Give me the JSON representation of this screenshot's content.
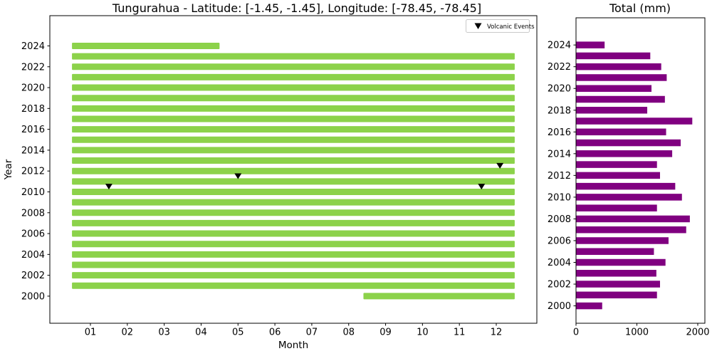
{
  "chart_data": [
    {
      "type": "bar",
      "subtype": "monthly-coverage-timeline",
      "title": "Tungurahua - Latitude: [-1.45, -1.45], Longitude: [-78.45, -78.45]",
      "xlabel": "Month",
      "ylabel": "Year",
      "xlim": [
        -0.1,
        13.1
      ],
      "ylim": [
        1997.4,
        2026.9
      ],
      "xtick_labels": [
        "01",
        "02",
        "03",
        "04",
        "05",
        "06",
        "07",
        "08",
        "09",
        "10",
        "11",
        "12"
      ],
      "xtick_values": [
        1,
        2,
        3,
        4,
        5,
        6,
        7,
        8,
        9,
        10,
        11,
        12
      ],
      "ytick_values": [
        2000,
        2002,
        2004,
        2006,
        2008,
        2010,
        2012,
        2014,
        2016,
        2018,
        2020,
        2022,
        2024
      ],
      "bar_color": "#8cd24a",
      "bars": [
        {
          "year": 2000,
          "month_start": 8.4,
          "month_end": 12.5
        },
        {
          "year": 2001,
          "month_start": 0.5,
          "month_end": 12.5
        },
        {
          "year": 2002,
          "month_start": 0.5,
          "month_end": 12.5
        },
        {
          "year": 2003,
          "month_start": 0.5,
          "month_end": 12.5
        },
        {
          "year": 2004,
          "month_start": 0.5,
          "month_end": 12.5
        },
        {
          "year": 2005,
          "month_start": 0.5,
          "month_end": 12.5
        },
        {
          "year": 2006,
          "month_start": 0.5,
          "month_end": 12.5
        },
        {
          "year": 2007,
          "month_start": 0.5,
          "month_end": 12.5
        },
        {
          "year": 2008,
          "month_start": 0.5,
          "month_end": 12.5
        },
        {
          "year": 2009,
          "month_start": 0.5,
          "month_end": 12.5
        },
        {
          "year": 2010,
          "month_start": 0.5,
          "month_end": 12.5
        },
        {
          "year": 2011,
          "month_start": 0.5,
          "month_end": 12.5
        },
        {
          "year": 2012,
          "month_start": 0.5,
          "month_end": 12.5
        },
        {
          "year": 2013,
          "month_start": 0.5,
          "month_end": 12.5
        },
        {
          "year": 2014,
          "month_start": 0.5,
          "month_end": 12.5
        },
        {
          "year": 2015,
          "month_start": 0.5,
          "month_end": 12.5
        },
        {
          "year": 2016,
          "month_start": 0.5,
          "month_end": 12.5
        },
        {
          "year": 2017,
          "month_start": 0.5,
          "month_end": 12.5
        },
        {
          "year": 2018,
          "month_start": 0.5,
          "month_end": 12.5
        },
        {
          "year": 2019,
          "month_start": 0.5,
          "month_end": 12.5
        },
        {
          "year": 2020,
          "month_start": 0.5,
          "month_end": 12.5
        },
        {
          "year": 2021,
          "month_start": 0.5,
          "month_end": 12.5
        },
        {
          "year": 2022,
          "month_start": 0.5,
          "month_end": 12.5
        },
        {
          "year": 2023,
          "month_start": 0.5,
          "month_end": 12.5
        },
        {
          "year": 2024,
          "month_start": 0.5,
          "month_end": 4.5
        }
      ],
      "events": [
        {
          "month": 1.5,
          "year": 2010.5
        },
        {
          "month": 11.6,
          "year": 2010.5
        },
        {
          "month": 5.0,
          "year": 2011.5
        },
        {
          "month": 12.1,
          "year": 2012.5
        }
      ],
      "legend": {
        "label": "Volcanic Events",
        "marker": "triangle-down",
        "marker_color": "#000000"
      }
    },
    {
      "type": "bar",
      "orientation": "horizontal",
      "title": "Total (mm)",
      "xlim": [
        0,
        2117
      ],
      "ylim": [
        1998.4,
        2026.5
      ],
      "xtick_values": [
        0,
        1000,
        2000
      ],
      "ytick_values": [
        2000,
        2002,
        2004,
        2006,
        2008,
        2010,
        2012,
        2014,
        2016,
        2018,
        2020,
        2022,
        2024
      ],
      "bar_color": "#800080",
      "categories": [
        2000,
        2001,
        2002,
        2003,
        2004,
        2005,
        2006,
        2007,
        2008,
        2009,
        2010,
        2011,
        2012,
        2013,
        2014,
        2015,
        2016,
        2017,
        2018,
        2019,
        2020,
        2021,
        2022,
        2023,
        2024
      ],
      "values": [
        430,
        1330,
        1380,
        1320,
        1470,
        1280,
        1520,
        1810,
        1870,
        1330,
        1740,
        1630,
        1380,
        1330,
        1580,
        1720,
        1480,
        1910,
        1170,
        1460,
        1240,
        1490,
        1400,
        1220,
        470
      ]
    }
  ]
}
